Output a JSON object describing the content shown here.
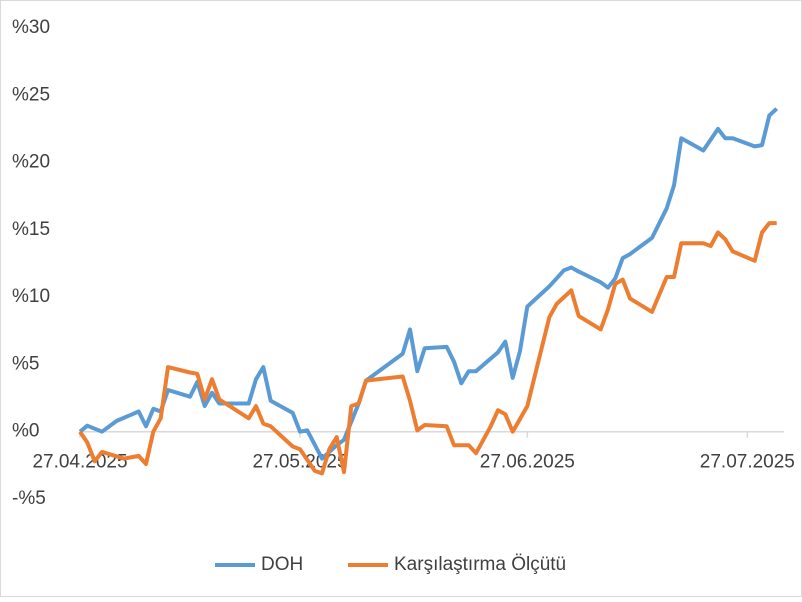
{
  "chart_data": {
    "type": "line",
    "xlim": [
      "27.04.2025",
      "01.08.2025"
    ],
    "xticks": [
      "27.04.2025",
      "27.05.2025",
      "27.06.2025",
      "27.07.2025"
    ],
    "ylim": [
      -5,
      30
    ],
    "yticks": [
      {
        "value": -5,
        "label": "-%5"
      },
      {
        "value": 0,
        "label": "%0"
      },
      {
        "value": 5,
        "label": "%5"
      },
      {
        "value": 10,
        "label": "%10"
      },
      {
        "value": 15,
        "label": "%15"
      },
      {
        "value": 20,
        "label": "%20"
      },
      {
        "value": 25,
        "label": "%25"
      },
      {
        "value": 30,
        "label": "%30"
      }
    ],
    "grid": false,
    "legend": "bottom",
    "series": [
      {
        "name": "DOH",
        "color": "#5b9bd5",
        "x": [
          "27.04.2025",
          "28.04.2025",
          "30.04.2025",
          "02.05.2025",
          "05.05.2025",
          "06.05.2025",
          "07.05.2025",
          "08.05.2025",
          "09.05.2025",
          "12.05.2025",
          "13.05.2025",
          "14.05.2025",
          "15.05.2025",
          "16.05.2025",
          "20.05.2025",
          "21.05.2025",
          "22.05.2025",
          "23.05.2025",
          "26.05.2025",
          "27.05.2025",
          "28.05.2025",
          "30.05.2025",
          "01.06.2025",
          "02.06.2025",
          "04.06.2025",
          "05.06.2025",
          "10.06.2025",
          "11.06.2025",
          "12.06.2025",
          "13.06.2025",
          "16.06.2025",
          "17.06.2025",
          "18.06.2025",
          "19.06.2025",
          "20.06.2025",
          "23.06.2025",
          "24.06.2025",
          "25.06.2025",
          "26.06.2025",
          "27.06.2025",
          "30.06.2025",
          "01.07.2025",
          "02.07.2025",
          "03.07.2025",
          "04.07.2025",
          "07.07.2025",
          "08.07.2025",
          "09.07.2025",
          "10.07.2025",
          "11.07.2025",
          "14.07.2025",
          "16.07.2025",
          "17.07.2025",
          "18.07.2025",
          "21.07.2025",
          "23.07.2025",
          "24.07.2025",
          "25.07.2025",
          "28.07.2025",
          "29.07.2025",
          "30.07.2025",
          "31.07.2025"
        ],
        "values": [
          0,
          0.45,
          0,
          0.8,
          1.5,
          0.4,
          1.7,
          1.5,
          3.1,
          2.6,
          3.7,
          1.9,
          2.9,
          2.1,
          2.1,
          3.9,
          4.8,
          2.3,
          1.4,
          0,
          0.1,
          -2.0,
          -1.0,
          -0.6,
          2.1,
          3.8,
          5.8,
          7.6,
          4.5,
          6.2,
          6.3,
          5.2,
          3.6,
          4.5,
          4.5,
          5.9,
          6.7,
          4.0,
          6.0,
          9.3,
          10.8,
          11.4,
          12.0,
          12.2,
          11.9,
          11.1,
          10.7,
          11.4,
          12.9,
          13.2,
          14.4,
          16.6,
          18.3,
          21.8,
          20.9,
          22.5,
          21.8,
          21.8,
          21.2,
          21.3,
          23.5,
          24.0
        ]
      },
      {
        "name": "Karşılaştırma Ölçütü",
        "color": "#ed7d31",
        "x": [
          "27.04.2025",
          "28.04.2025",
          "29.04.2025",
          "30.04.2025",
          "03.05.2025",
          "05.05.2025",
          "06.05.2025",
          "07.05.2025",
          "08.05.2025",
          "09.05.2025",
          "12.05.2025",
          "13.05.2025",
          "14.05.2025",
          "15.05.2025",
          "16.05.2025",
          "20.05.2025",
          "21.05.2025",
          "22.05.2025",
          "23.05.2025",
          "26.05.2025",
          "27.05.2025",
          "29.05.2025",
          "30.05.2025",
          "31.05.2025",
          "01.06.2025",
          "02.06.2025",
          "03.06.2025",
          "04.06.2025",
          "05.06.2025",
          "10.06.2025",
          "11.06.2025",
          "12.06.2025",
          "13.06.2025",
          "16.06.2025",
          "17.06.2025",
          "19.06.2025",
          "20.06.2025",
          "22.06.2025",
          "23.06.2025",
          "24.06.2025",
          "25.06.2025",
          "27.06.2025",
          "30.06.2025",
          "01.07.2025",
          "03.07.2025",
          "04.07.2025",
          "07.07.2025",
          "08.07.2025",
          "09.07.2025",
          "10.07.2025",
          "11.07.2025",
          "14.07.2025",
          "16.07.2025",
          "17.07.2025",
          "18.07.2025",
          "21.07.2025",
          "22.07.2025",
          "23.07.2025",
          "24.07.2025",
          "25.07.2025",
          "28.07.2025",
          "29.07.2025",
          "30.07.2025",
          "31.07.2025"
        ],
        "values": [
          0,
          -0.8,
          -2.2,
          -1.5,
          -2.0,
          -1.8,
          -2.4,
          0,
          1.0,
          4.8,
          4.4,
          4.3,
          2.4,
          3.9,
          2.4,
          1.0,
          1.9,
          0.6,
          0.4,
          -1.1,
          -1.3,
          -2.9,
          -3.1,
          -1.3,
          -0.4,
          -3.0,
          1.9,
          2.1,
          3.8,
          4.1,
          2.3,
          0.1,
          0.5,
          0.4,
          -1.0,
          -1.0,
          -1.6,
          0.4,
          1.6,
          1.3,
          0,
          1.9,
          8.5,
          9.5,
          10.5,
          8.6,
          7.6,
          9.1,
          11.0,
          11.3,
          9.9,
          8.9,
          11.5,
          11.5,
          14.0,
          14.0,
          13.8,
          14.8,
          14.3,
          13.4,
          12.7,
          14.8,
          15.5,
          15.5
        ]
      }
    ]
  }
}
